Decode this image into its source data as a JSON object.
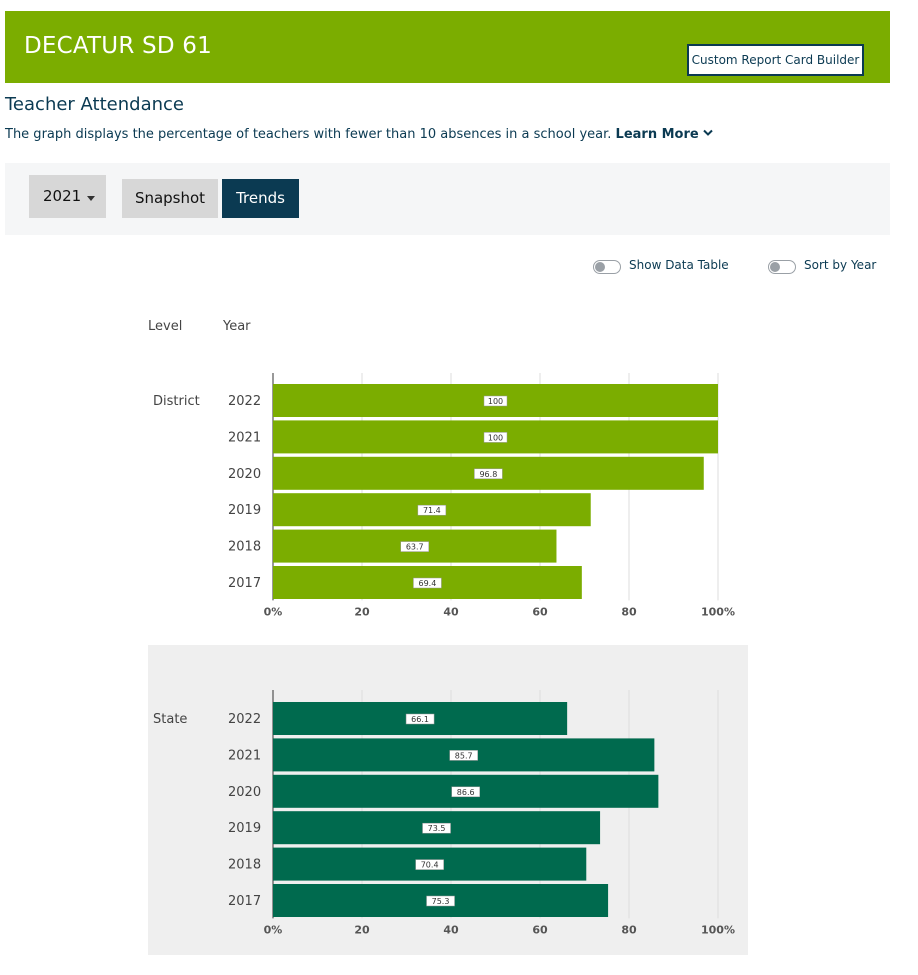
{
  "header": {
    "title": "DECATUR SD 61",
    "custom_report_button": "Custom Report Card Builder",
    "bg_color": "#7bad00"
  },
  "section": {
    "title": "Teacher Attendance",
    "description": "The graph displays the percentage of teachers with fewer than 10 absences in a school year.",
    "learn_more": "Learn More",
    "learn_more_icon": "chevron-down-icon"
  },
  "controls": {
    "year_selected": "2021",
    "views": [
      {
        "label": "Snapshot",
        "active": false
      },
      {
        "label": "Trends",
        "active": true
      }
    ]
  },
  "toggles": {
    "show_data_table": {
      "label": "Show Data Table",
      "on": false
    },
    "sort_by_year": {
      "label": "Sort by Year",
      "on": false
    }
  },
  "columns": {
    "level": "Level",
    "year": "Year"
  },
  "chart_data": {
    "type": "bar",
    "orientation": "horizontal",
    "xlim": [
      0,
      100
    ],
    "ticks": [
      "0%",
      "20",
      "40",
      "60",
      "80",
      "100%"
    ],
    "grid": true,
    "groups": [
      {
        "level": "District",
        "color": "#7bad00",
        "categories": [
          "2022",
          "2021",
          "2020",
          "2019",
          "2018",
          "2017"
        ],
        "values": [
          100,
          100,
          96.8,
          71.4,
          63.7,
          69.4
        ]
      },
      {
        "level": "State",
        "color": "#006a4e",
        "categories": [
          "2022",
          "2021",
          "2020",
          "2019",
          "2018",
          "2017"
        ],
        "values": [
          66.1,
          85.7,
          86.6,
          73.5,
          70.4,
          75.3
        ]
      }
    ]
  }
}
